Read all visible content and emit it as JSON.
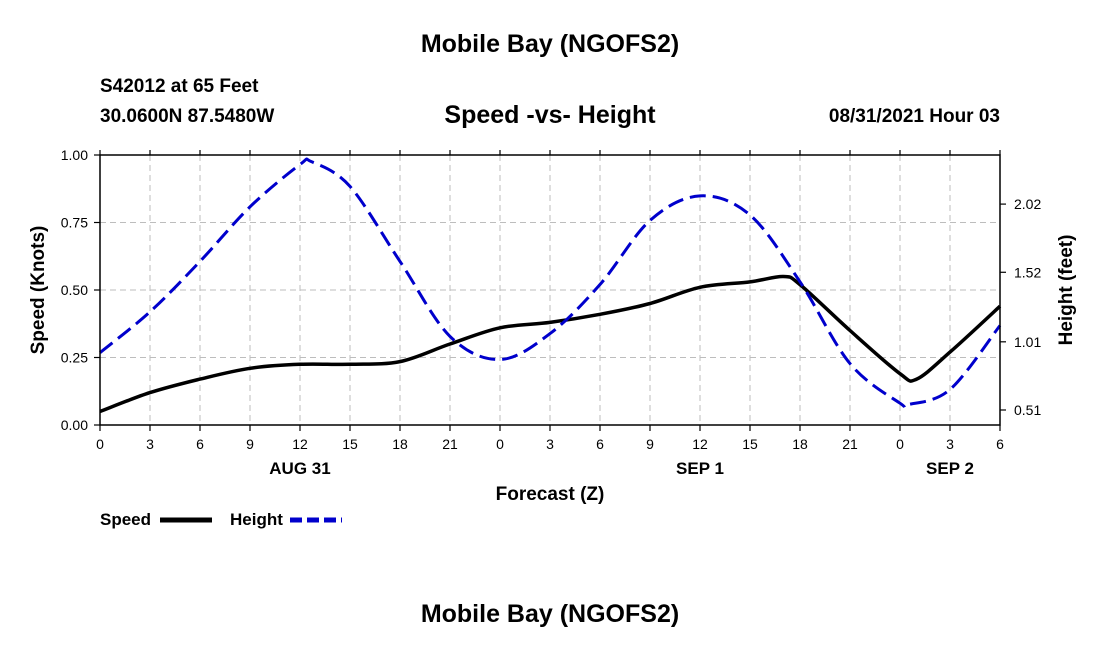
{
  "header": {
    "title": "Mobile Bay (NGOFS2)",
    "station": "S42012 at 65 Feet",
    "coords": "30.0600N  87.5480W",
    "subtitle": "Speed -vs- Height",
    "datetime": "08/31/2021 Hour 03"
  },
  "footer": {
    "title": "Mobile Bay (NGOFS2)"
  },
  "chart_data": {
    "type": "line",
    "title": "Speed -vs- Height",
    "xlabel": "Forecast (Z)",
    "ylabel": "Speed (Knots)",
    "y2label": "Height (feet)",
    "xlim": [
      0,
      54
    ],
    "ylim": [
      0,
      1.0
    ],
    "y2lim": [
      0.4,
      2.38
    ],
    "x_ticks": [
      0,
      3,
      6,
      9,
      12,
      15,
      18,
      21,
      24,
      27,
      30,
      33,
      36,
      39,
      42,
      45,
      48,
      51,
      54
    ],
    "x_tick_labels": [
      "0",
      "3",
      "6",
      "9",
      "12",
      "15",
      "18",
      "21",
      "0",
      "3",
      "6",
      "9",
      "12",
      "15",
      "18",
      "21",
      "0",
      "3",
      "6"
    ],
    "date_labels": [
      {
        "x": 12,
        "text": "AUG 31"
      },
      {
        "x": 36,
        "text": "SEP 1"
      },
      {
        "x": 51,
        "text": "SEP 2"
      }
    ],
    "y_ticks": [
      0.0,
      0.25,
      0.5,
      0.75,
      1.0
    ],
    "y_tick_labels": [
      "0.00",
      "0.25",
      "0.50",
      "0.75",
      "1.00"
    ],
    "y2_ticks": [
      0.51,
      1.01,
      1.52,
      2.02
    ],
    "y2_tick_labels": [
      "0.51",
      "1.01",
      "1.52",
      "2.02"
    ],
    "grid": true,
    "series": [
      {
        "name": "Speed",
        "axis": "left",
        "color": "#000000",
        "style": "solid",
        "x": [
          0,
          3,
          6,
          9,
          12,
          15,
          18,
          21,
          24,
          27,
          30,
          33,
          36,
          39,
          41,
          42,
          45,
          48,
          49,
          51,
          54
        ],
        "y": [
          0.05,
          0.12,
          0.17,
          0.21,
          0.225,
          0.225,
          0.235,
          0.3,
          0.36,
          0.38,
          0.41,
          0.45,
          0.51,
          0.53,
          0.55,
          0.52,
          0.35,
          0.19,
          0.17,
          0.27,
          0.44
        ]
      },
      {
        "name": "Height",
        "axis": "right",
        "color": "#0000cc",
        "style": "dashed",
        "x": [
          0,
          3,
          6,
          9,
          12,
          12.7,
          15,
          18,
          21,
          24,
          27,
          30,
          33,
          36,
          39,
          42,
          45,
          48,
          48.5,
          51,
          54
        ],
        "y": [
          0.93,
          1.23,
          1.6,
          2.0,
          2.31,
          2.33,
          2.15,
          1.6,
          1.05,
          0.88,
          1.07,
          1.43,
          1.9,
          2.08,
          1.94,
          1.45,
          0.85,
          0.56,
          0.55,
          0.66,
          1.13
        ]
      }
    ]
  }
}
